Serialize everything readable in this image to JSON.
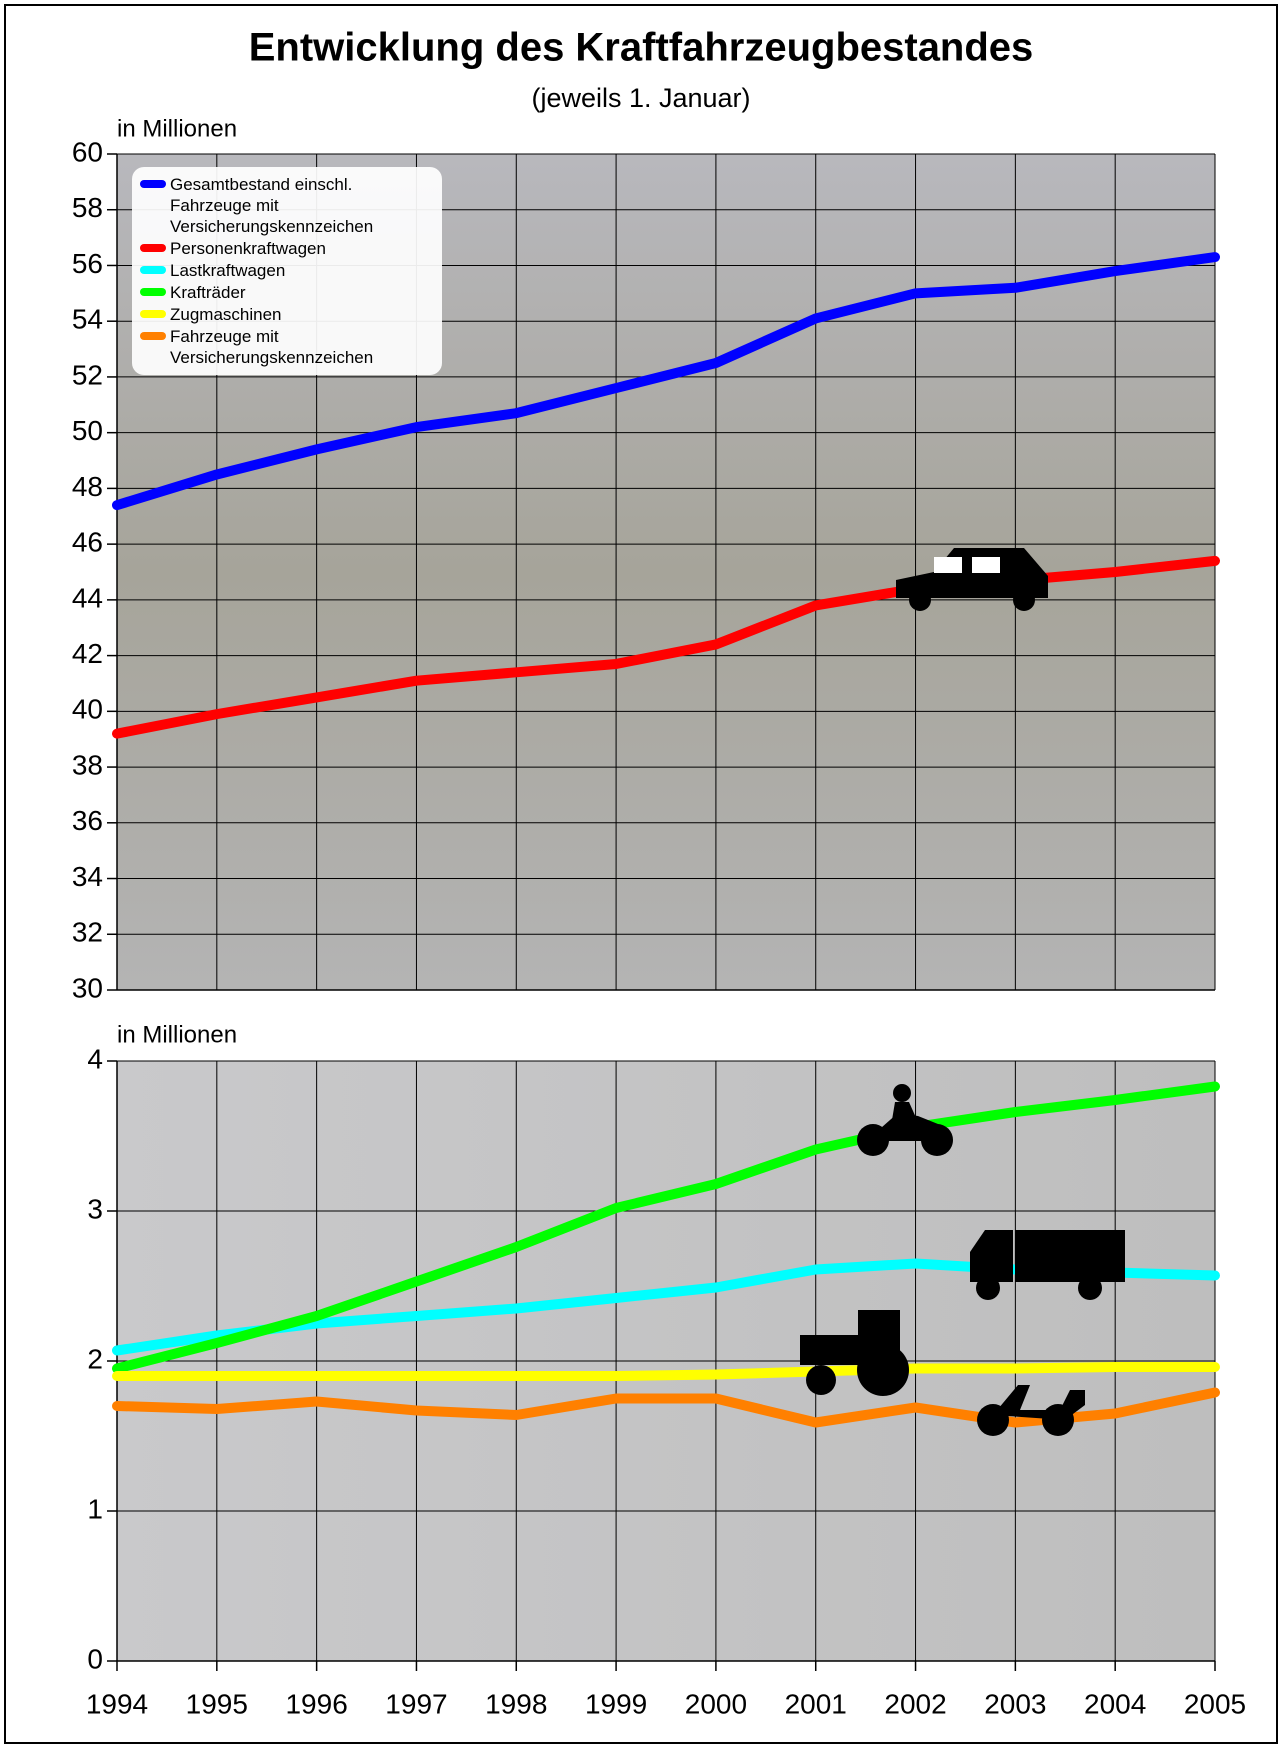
{
  "chart_data": [
    {
      "type": "line",
      "title": "Entwicklung des Kraftfahrzeugbestandes",
      "subtitle": "(jeweils 1. Januar)",
      "y_label": "in Millionen",
      "x": [
        1994,
        1995,
        1996,
        1997,
        1998,
        1999,
        2000,
        2001,
        2002,
        2003,
        2004,
        2005
      ],
      "xlim": [
        1994,
        2005
      ],
      "xticks": [
        1994,
        1995,
        1996,
        1997,
        1998,
        1999,
        2000,
        2001,
        2002,
        2003,
        2004,
        2005
      ],
      "ylim": [
        30,
        60
      ],
      "yticks": [
        30,
        32,
        34,
        36,
        38,
        40,
        42,
        44,
        46,
        48,
        50,
        52,
        54,
        56,
        58,
        60
      ],
      "grid": true,
      "series": [
        {
          "name": "Gesamtbestand einschl. Fahrzeuge mit Versicherungskennzeichen",
          "color": "#0000ff",
          "values": [
            47.4,
            48.5,
            49.4,
            50.2,
            50.7,
            51.6,
            52.5,
            54.1,
            55.0,
            55.2,
            55.8,
            56.3
          ]
        },
        {
          "name": "Personenkraftwagen",
          "color": "#ff0000",
          "values": [
            39.2,
            39.9,
            40.5,
            41.1,
            41.4,
            41.7,
            42.4,
            43.8,
            44.4,
            44.7,
            45.0,
            45.4
          ]
        }
      ]
    },
    {
      "type": "line",
      "y_label": "in Millionen",
      "x": [
        1994,
        1995,
        1996,
        1997,
        1998,
        1999,
        2000,
        2001,
        2002,
        2003,
        2004,
        2005
      ],
      "xlim": [
        1994,
        2005
      ],
      "xticks": [
        1994,
        1995,
        1996,
        1997,
        1998,
        1999,
        2000,
        2001,
        2002,
        2003,
        2004,
        2005
      ],
      "ylim": [
        0,
        4
      ],
      "yticks": [
        0,
        1,
        2,
        3,
        4
      ],
      "grid": true,
      "series": [
        {
          "name": "Lastkraftwagen",
          "color": "#00ffff",
          "values": [
            2.07,
            2.17,
            2.25,
            2.3,
            2.35,
            2.42,
            2.49,
            2.61,
            2.65,
            2.61,
            2.59,
            2.57
          ]
        },
        {
          "name": "Krafträder",
          "color": "#00ff00",
          "values": [
            1.95,
            2.12,
            2.3,
            2.53,
            2.76,
            3.02,
            3.18,
            3.41,
            3.56,
            3.66,
            3.74,
            3.83
          ]
        },
        {
          "name": "Zugmaschinen",
          "color": "#ffff00",
          "values": [
            1.9,
            1.9,
            1.9,
            1.9,
            1.9,
            1.9,
            1.91,
            1.93,
            1.95,
            1.95,
            1.96,
            1.96
          ]
        },
        {
          "name": "Fahrzeuge mit Versicherungskennzeichen",
          "color": "#ff8000",
          "values": [
            1.7,
            1.68,
            1.73,
            1.67,
            1.64,
            1.75,
            1.75,
            1.59,
            1.69,
            1.59,
            1.65,
            1.79
          ]
        }
      ]
    }
  ]
}
